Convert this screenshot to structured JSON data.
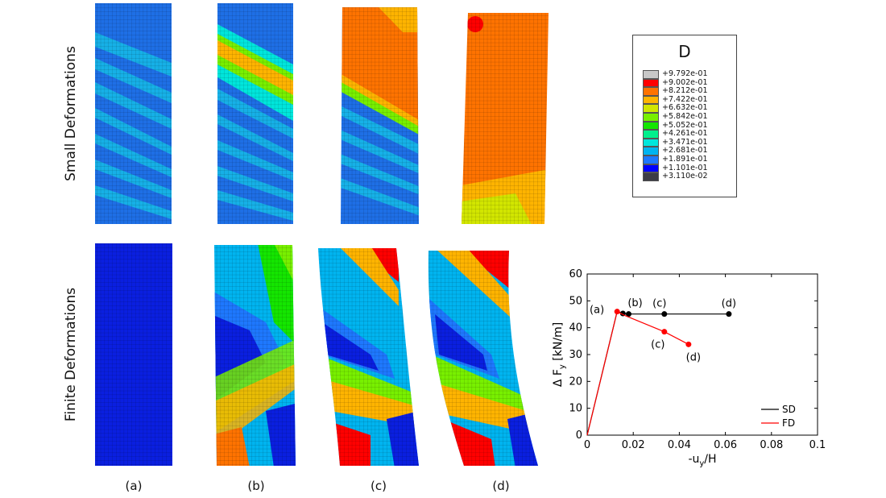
{
  "row_labels": {
    "top": "Small Deformations",
    "bottom": "Finite Deformations"
  },
  "case_labels": [
    "(a)",
    "(b)",
    "(c)",
    "(d)"
  ],
  "legend": {
    "title": "D",
    "entries": [
      {
        "value": "+9.792e-01",
        "color": "#c8c8c8"
      },
      {
        "value": "+9.002e-01",
        "color": "#ff0000"
      },
      {
        "value": "+8.212e-01",
        "color": "#ff7300"
      },
      {
        "value": "+7.422e-01",
        "color": "#ffb400"
      },
      {
        "value": "+6.632e-01",
        "color": "#d2e600"
      },
      {
        "value": "+5.842e-01",
        "color": "#78f000"
      },
      {
        "value": "+5.052e-01",
        "color": "#14e600"
      },
      {
        "value": "+4.261e-01",
        "color": "#00f08c"
      },
      {
        "value": "+3.471e-01",
        "color": "#00e6dc"
      },
      {
        "value": "+2.681e-01",
        "color": "#00b4f0"
      },
      {
        "value": "+1.891e-01",
        "color": "#1e78ff"
      },
      {
        "value": "+1.101e-01",
        "color": "#0000ff"
      },
      {
        "value": "+3.110e-02",
        "color": "#3c3c46"
      }
    ]
  },
  "chart_data": {
    "type": "line",
    "xlabel": "-u_y/H",
    "ylabel": "Δ F_y [kN/m]",
    "xlim": [
      0,
      0.1
    ],
    "ylim": [
      0,
      60
    ],
    "xticks": [
      "0",
      "0.02",
      "0.04",
      "0.06",
      "0.08",
      "0.1"
    ],
    "yticks": [
      "0",
      "10",
      "20",
      "30",
      "40",
      "50",
      "60"
    ],
    "legend_placement": "bottom-right",
    "series": [
      {
        "name": "SD",
        "color": "#000000",
        "x": [
          0,
          0.013,
          0.0155,
          0.018,
          0.0335,
          0.0615
        ],
        "y": [
          0,
          46,
          45.3,
          45.1,
          45.1,
          45.1
        ],
        "marked_points": [
          {
            "x": 0.0155,
            "y": 45.3,
            "label": "(b)"
          },
          {
            "x": 0.018,
            "y": 45.1,
            "label": ""
          },
          {
            "x": 0.0335,
            "y": 45.1,
            "label": "(c)"
          },
          {
            "x": 0.0615,
            "y": 45.1,
            "label": "(d)"
          }
        ]
      },
      {
        "name": "FD",
        "color": "#ff0000",
        "x": [
          0,
          0.013,
          0.0165,
          0.0335,
          0.044
        ],
        "y": [
          0,
          46,
          44.5,
          38.5,
          33.8
        ],
        "marked_points": [
          {
            "x": 0.013,
            "y": 46,
            "label": "(a)"
          },
          {
            "x": 0.0335,
            "y": 38.5,
            "label": "(c)"
          },
          {
            "x": 0.044,
            "y": 33.8,
            "label": "(d)"
          }
        ]
      }
    ]
  }
}
